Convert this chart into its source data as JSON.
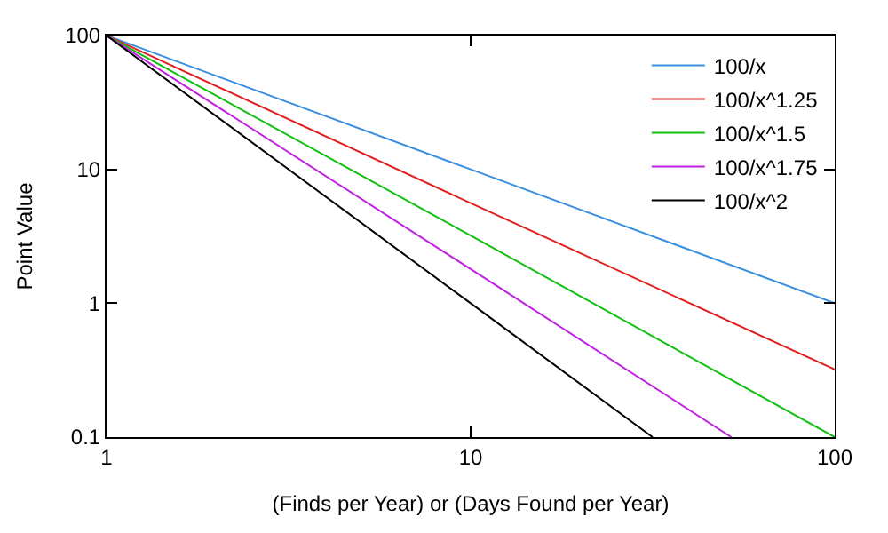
{
  "chart_data": {
    "type": "line",
    "xlabel": "(Finds per Year) or (Days Found per Year)",
    "ylabel": "Point Value",
    "log": "xy",
    "xlim": [
      1,
      100
    ],
    "ylim": [
      0.1,
      100
    ],
    "xticks": [
      1,
      10,
      100
    ],
    "yticks": [
      0.1,
      1,
      10,
      100
    ],
    "legend": "top right",
    "marker": "none",
    "line_style": "solid",
    "series": [
      {
        "name": "100/x",
        "color": "#3a8fe0",
        "x": [
          1,
          10,
          100
        ],
        "values": [
          100,
          10,
          1
        ]
      },
      {
        "name": "100/x^1.25",
        "color": "#e02020",
        "x": [
          1,
          10,
          100
        ],
        "values": [
          100,
          5.6,
          0.32
        ]
      },
      {
        "name": "100/x^1.5",
        "color": "#10c010",
        "x": [
          1,
          10,
          100
        ],
        "values": [
          100,
          3.2,
          0.1
        ]
      },
      {
        "name": "100/x^1.75",
        "color": "#c020e0",
        "x": [
          1,
          10,
          52
        ],
        "values": [
          100,
          1.8,
          0.1
        ]
      },
      {
        "name": "100/x^2",
        "color": "#000000",
        "x": [
          1,
          10,
          31.6
        ],
        "values": [
          100,
          1,
          0.1
        ]
      }
    ]
  }
}
